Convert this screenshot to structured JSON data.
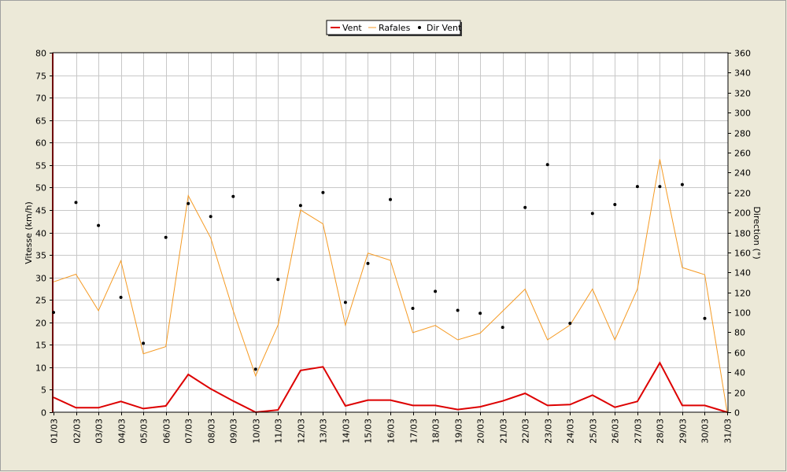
{
  "chart_data": {
    "type": "line",
    "title": "",
    "xlabel": "",
    "ylabel": "Vitesse (km/h)",
    "y2label": "Direction (°)",
    "ylim": [
      0,
      80
    ],
    "y2lim": [
      0,
      360
    ],
    "yticks": [
      0,
      5,
      10,
      15,
      20,
      25,
      30,
      35,
      40,
      45,
      50,
      55,
      60,
      65,
      70,
      75,
      80
    ],
    "y2ticks": [
      0,
      20,
      40,
      60,
      80,
      100,
      120,
      140,
      160,
      180,
      200,
      220,
      240,
      260,
      280,
      300,
      320,
      340,
      360
    ],
    "grid": true,
    "legend_position": "top-center",
    "categories": [
      "01/03",
      "02/03",
      "03/03",
      "04/03",
      "05/03",
      "06/03",
      "07/03",
      "08/03",
      "09/03",
      "10/03",
      "11/03",
      "12/03",
      "13/03",
      "14/03",
      "15/03",
      "16/03",
      "17/03",
      "18/03",
      "19/03",
      "20/03",
      "21/03",
      "22/03",
      "23/03",
      "24/03",
      "25/03",
      "26/03",
      "27/03",
      "28/03",
      "29/03",
      "30/03",
      "31/03"
    ],
    "series": [
      {
        "name": "Vent",
        "axis": "left",
        "style": "line",
        "color": "#dd0000",
        "values": [
          3.3,
          1.0,
          1.0,
          2.4,
          0.8,
          1.4,
          8.4,
          5.2,
          2.5,
          0.0,
          0.5,
          9.3,
          10.1,
          1.4,
          2.7,
          2.7,
          1.5,
          1.5,
          0.6,
          1.2,
          2.5,
          4.2,
          1.5,
          1.7,
          3.8,
          1.1,
          2.4,
          11.0,
          1.5,
          1.5,
          0.0
        ]
      },
      {
        "name": "Rafales",
        "axis": "left",
        "style": "line",
        "color": "#f59a23",
        "values": [
          29.0,
          30.7,
          22.6,
          33.7,
          13.0,
          14.6,
          48.2,
          38.8,
          22.6,
          8.1,
          19.4,
          45.0,
          41.9,
          19.4,
          35.4,
          33.8,
          17.7,
          19.3,
          16.1,
          17.6,
          22.5,
          27.4,
          16.1,
          19.4,
          27.4,
          16.1,
          27.4,
          56.3,
          32.2,
          30.6,
          0.0
        ]
      },
      {
        "name": "Dir Vent",
        "axis": "right",
        "style": "points",
        "color": "#000000",
        "values": [
          100,
          210,
          187,
          115,
          69,
          175,
          209,
          196,
          216,
          43,
          133,
          207,
          220,
          110,
          149,
          213,
          104,
          121,
          102,
          99,
          85,
          205,
          248,
          89,
          199,
          208,
          226,
          226,
          228,
          94,
          null
        ]
      }
    ]
  }
}
